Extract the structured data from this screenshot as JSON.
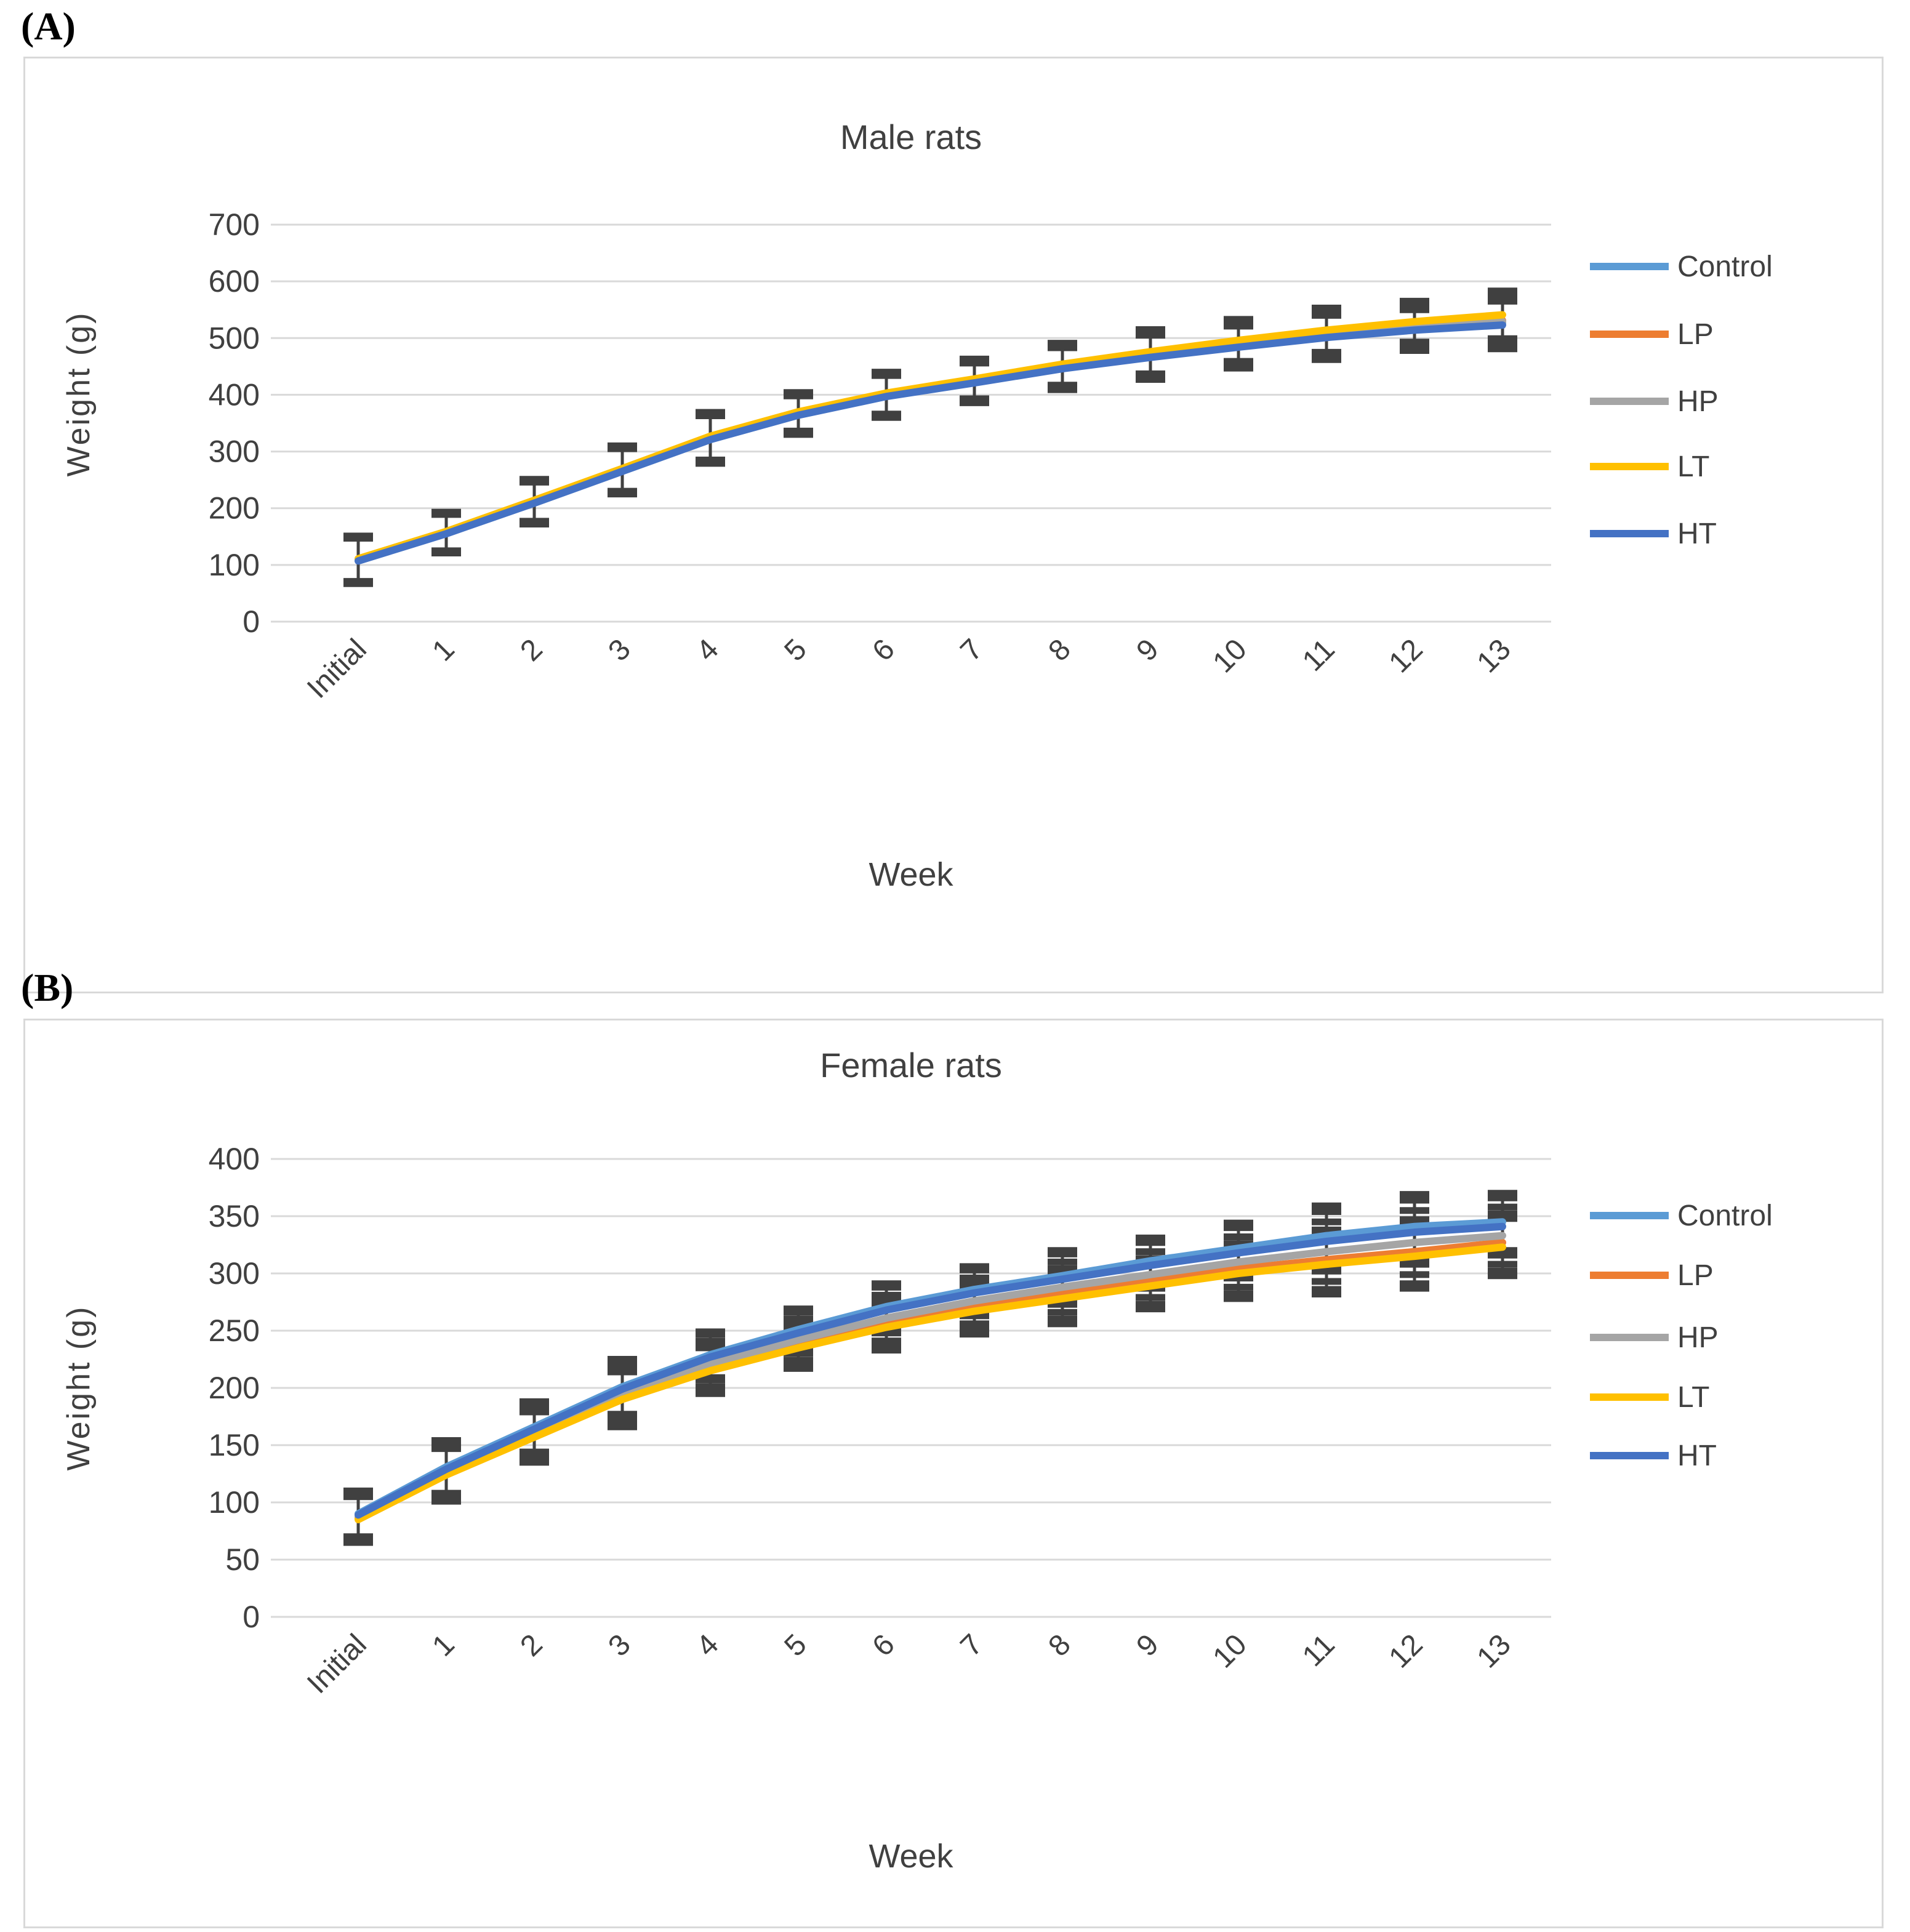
{
  "page": {
    "panel_a_label": "(A)",
    "panel_b_label": "(B)"
  },
  "chart_data": [
    {
      "type": "line",
      "panel": "A",
      "title": "Male rats",
      "xlabel": "Week",
      "ylabel": "Weight (g)",
      "ylim": [
        0,
        700
      ],
      "ytick_step": 100,
      "grid": true,
      "legend_position": "right",
      "error_bar_color": "#404040",
      "categories": [
        "Initial",
        "1",
        "2",
        "3",
        "4",
        "5",
        "6",
        "7",
        "8",
        "9",
        "10",
        "11",
        "12",
        "13"
      ],
      "series": [
        {
          "name": "Control",
          "color": "#5B9BD5",
          "values": [
            110,
            158,
            212,
            268,
            325,
            368,
            401,
            425,
            451,
            471,
            489,
            506,
            519,
            527
          ],
          "errors": [
            40,
            34,
            37,
            40,
            42,
            34,
            37,
            35,
            37,
            39,
            37,
            39,
            36,
            42
          ]
        },
        {
          "name": "LP",
          "color": "#ED7D31",
          "values": [
            109,
            157,
            211,
            267,
            324,
            367,
            400,
            424,
            450,
            470,
            489,
            507,
            521,
            531
          ],
          "errors": [
            40,
            34,
            37,
            40,
            42,
            34,
            37,
            35,
            37,
            39,
            37,
            39,
            36,
            42
          ]
        },
        {
          "name": "HP",
          "color": "#A5A5A5",
          "values": [
            108,
            156,
            210,
            266,
            322,
            365,
            398,
            422,
            448,
            468,
            487,
            505,
            519,
            529
          ],
          "errors": [
            40,
            34,
            37,
            40,
            42,
            34,
            37,
            35,
            37,
            39,
            37,
            39,
            36,
            42
          ]
        },
        {
          "name": "LT",
          "color": "#FFC000",
          "values": [
            111,
            159,
            214,
            270,
            327,
            370,
            403,
            428,
            454,
            476,
            496,
            514,
            529,
            541
          ],
          "errors": [
            40,
            34,
            37,
            40,
            42,
            34,
            37,
            35,
            37,
            39,
            37,
            39,
            36,
            42
          ]
        },
        {
          "name": "HT",
          "color": "#4472C4",
          "values": [
            107,
            155,
            209,
            265,
            321,
            364,
            397,
            421,
            446,
            466,
            484,
            501,
            514,
            523
          ],
          "errors": [
            40,
            34,
            37,
            40,
            42,
            34,
            37,
            35,
            37,
            39,
            37,
            39,
            36,
            42
          ]
        }
      ]
    },
    {
      "type": "line",
      "panel": "B",
      "title": "Female rats",
      "xlabel": "Week",
      "ylabel": "Weight (g)",
      "ylim": [
        0,
        400
      ],
      "ytick_step": 50,
      "grid": true,
      "legend_position": "right",
      "error_bar_color": "#404040",
      "categories": [
        "Initial",
        "1",
        "2",
        "3",
        "4",
        "5",
        "6",
        "7",
        "8",
        "9",
        "10",
        "11",
        "12",
        "13"
      ],
      "series": [
        {
          "name": "Control",
          "color": "#5B9BD5",
          "values": [
            90,
            131,
            166,
            201,
            229,
            251,
            271,
            286,
            298,
            311,
            322,
            333,
            341,
            345
          ],
          "errors": [
            20,
            23,
            22,
            24,
            20,
            18,
            20,
            20,
            22,
            20,
            22,
            26,
            28,
            25
          ]
        },
        {
          "name": "LP",
          "color": "#ED7D31",
          "values": [
            86,
            125,
            159,
            192,
            217,
            238,
            256,
            271,
            282,
            293,
            304,
            312,
            319,
            327
          ],
          "errors": [
            20,
            23,
            22,
            24,
            20,
            18,
            20,
            20,
            22,
            20,
            22,
            26,
            28,
            25
          ]
        },
        {
          "name": "HP",
          "color": "#A5A5A5",
          "values": [
            87,
            127,
            161,
            195,
            221,
            242,
            261,
            276,
            288,
            299,
            310,
            319,
            327,
            333
          ],
          "errors": [
            20,
            23,
            22,
            24,
            20,
            18,
            20,
            20,
            22,
            20,
            22,
            26,
            28,
            25
          ]
        },
        {
          "name": "LT",
          "color": "#FFC000",
          "values": [
            85,
            124,
            157,
            190,
            215,
            235,
            253,
            267,
            278,
            289,
            300,
            308,
            315,
            323
          ],
          "errors": [
            20,
            23,
            22,
            24,
            20,
            18,
            20,
            20,
            22,
            20,
            22,
            26,
            28,
            25
          ]
        },
        {
          "name": "HT",
          "color": "#4472C4",
          "values": [
            89,
            129,
            164,
            199,
            227,
            248,
            268,
            283,
            295,
            307,
            318,
            328,
            336,
            341
          ],
          "errors": [
            20,
            23,
            22,
            24,
            20,
            18,
            20,
            20,
            22,
            20,
            22,
            26,
            28,
            25
          ]
        }
      ]
    }
  ]
}
